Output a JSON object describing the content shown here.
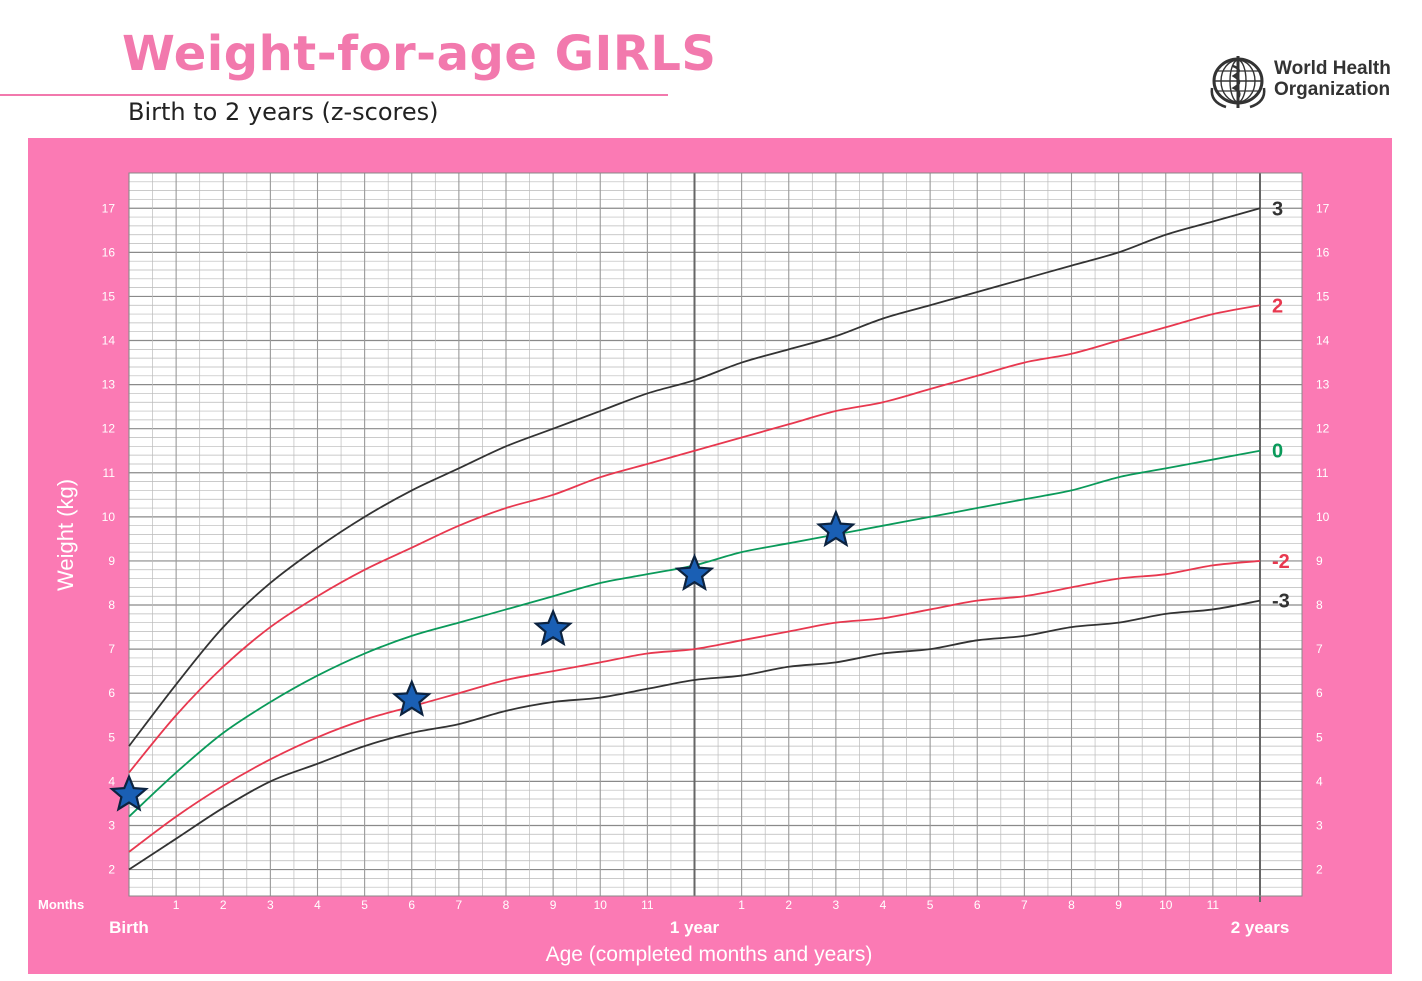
{
  "header": {
    "title": "Weight-for-age GIRLS",
    "subtitle": "Birth to 2 years (z-scores)",
    "org_line1": "World Health",
    "org_line2": "Organization",
    "logo_icon": "who-emblem-icon"
  },
  "colors": {
    "brand_pink": "#f279ad",
    "panel_pink": "#fb7ab4",
    "sd3": "#333333",
    "sd2": "#e8384f",
    "median": "#0a9a5a",
    "marker": "#1a5fb4"
  },
  "chart_data": {
    "type": "line",
    "title": "Weight-for-age GIRLS",
    "subtitle": "Birth to 2 years (z-scores)",
    "xlabel": "Age (completed months and years)",
    "ylabel": "Weight (kg)",
    "x_unit_label": "Months",
    "xlim": [
      0,
      24
    ],
    "ylim": [
      1.4,
      17.8
    ],
    "grid": true,
    "y_ticks": [
      2,
      3,
      4,
      5,
      6,
      7,
      8,
      9,
      10,
      11,
      12,
      13,
      14,
      15,
      16,
      17
    ],
    "x_tick_labels": [
      {
        "x": 0,
        "label": "Birth",
        "bold": true
      },
      {
        "x": 1,
        "label": "1"
      },
      {
        "x": 2,
        "label": "2"
      },
      {
        "x": 3,
        "label": "3"
      },
      {
        "x": 4,
        "label": "4"
      },
      {
        "x": 5,
        "label": "5"
      },
      {
        "x": 6,
        "label": "6"
      },
      {
        "x": 7,
        "label": "7"
      },
      {
        "x": 8,
        "label": "8"
      },
      {
        "x": 9,
        "label": "9"
      },
      {
        "x": 10,
        "label": "10"
      },
      {
        "x": 11,
        "label": "11"
      },
      {
        "x": 12,
        "label": "1 year",
        "bold": true
      },
      {
        "x": 13,
        "label": "1"
      },
      {
        "x": 14,
        "label": "2"
      },
      {
        "x": 15,
        "label": "3"
      },
      {
        "x": 16,
        "label": "4"
      },
      {
        "x": 17,
        "label": "5"
      },
      {
        "x": 18,
        "label": "6"
      },
      {
        "x": 19,
        "label": "7"
      },
      {
        "x": 20,
        "label": "8"
      },
      {
        "x": 21,
        "label": "9"
      },
      {
        "x": 22,
        "label": "10"
      },
      {
        "x": 23,
        "label": "11"
      },
      {
        "x": 24,
        "label": "2 years",
        "bold": true
      }
    ],
    "x": [
      0,
      1,
      2,
      3,
      4,
      5,
      6,
      7,
      8,
      9,
      10,
      11,
      12,
      13,
      14,
      15,
      16,
      17,
      18,
      19,
      20,
      21,
      22,
      23,
      24
    ],
    "series": [
      {
        "name": "3",
        "color": "#333333",
        "values": [
          4.8,
          6.2,
          7.5,
          8.5,
          9.3,
          10.0,
          10.6,
          11.1,
          11.6,
          12.0,
          12.4,
          12.8,
          13.1,
          13.5,
          13.8,
          14.1,
          14.5,
          14.8,
          15.1,
          15.4,
          15.7,
          16.0,
          16.4,
          16.7,
          17.0
        ]
      },
      {
        "name": "2",
        "color": "#e8384f",
        "values": [
          4.2,
          5.5,
          6.6,
          7.5,
          8.2,
          8.8,
          9.3,
          9.8,
          10.2,
          10.5,
          10.9,
          11.2,
          11.5,
          11.8,
          12.1,
          12.4,
          12.6,
          12.9,
          13.2,
          13.5,
          13.7,
          14.0,
          14.3,
          14.6,
          14.8
        ]
      },
      {
        "name": "0",
        "color": "#0a9a5a",
        "values": [
          3.2,
          4.2,
          5.1,
          5.8,
          6.4,
          6.9,
          7.3,
          7.6,
          7.9,
          8.2,
          8.5,
          8.7,
          8.9,
          9.2,
          9.4,
          9.6,
          9.8,
          10.0,
          10.2,
          10.4,
          10.6,
          10.9,
          11.1,
          11.3,
          11.5
        ]
      },
      {
        "name": "-2",
        "color": "#e8384f",
        "values": [
          2.4,
          3.2,
          3.9,
          4.5,
          5.0,
          5.4,
          5.7,
          6.0,
          6.3,
          6.5,
          6.7,
          6.9,
          7.0,
          7.2,
          7.4,
          7.6,
          7.7,
          7.9,
          8.1,
          8.2,
          8.4,
          8.6,
          8.7,
          8.9,
          9.0
        ]
      },
      {
        "name": "-3",
        "color": "#333333",
        "values": [
          2.0,
          2.7,
          3.4,
          4.0,
          4.4,
          4.8,
          5.1,
          5.3,
          5.6,
          5.8,
          5.9,
          6.1,
          6.3,
          6.4,
          6.6,
          6.7,
          6.9,
          7.0,
          7.2,
          7.3,
          7.5,
          7.6,
          7.8,
          7.9,
          8.1
        ]
      }
    ],
    "markers": [
      {
        "x": 0,
        "y": 3.7
      },
      {
        "x": 6,
        "y": 5.85
      },
      {
        "x": 9,
        "y": 7.45
      },
      {
        "x": 12,
        "y": 8.7
      },
      {
        "x": 15,
        "y": 9.7
      }
    ]
  }
}
